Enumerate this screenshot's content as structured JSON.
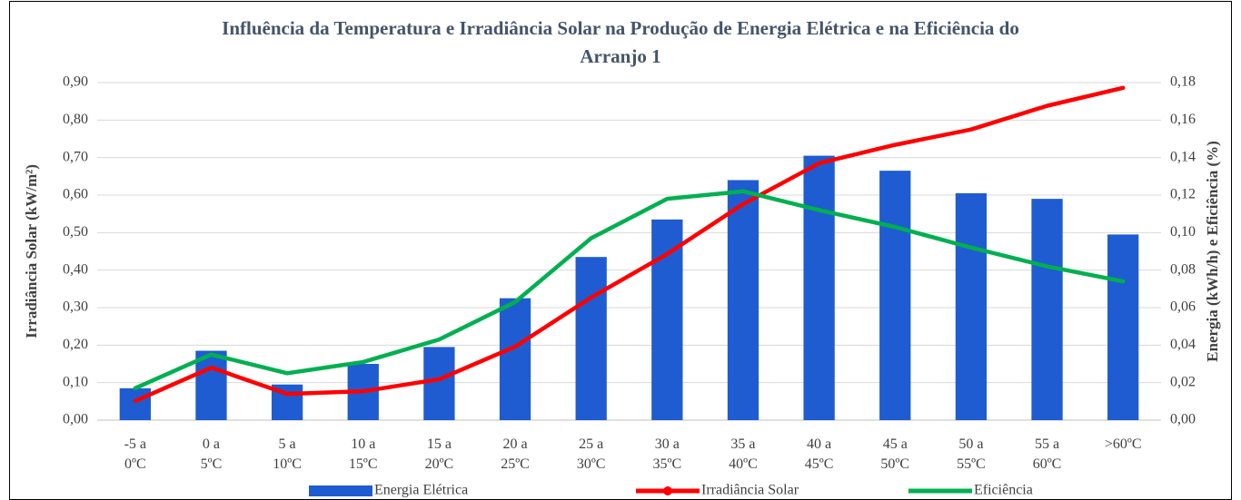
{
  "chart_data": {
    "type": "bar_line",
    "title": "Influência da Temperatura e Irradiância Solar na Produção de Energia Elétrica e na Eficiência do Arranjo 1",
    "ylabel": "Irradiância Solar (kW/m²)",
    "y2label": "Energia (kWh/h) e Eficiência (%)",
    "categories": [
      "-5 a 0ºC",
      "0 a 5ºC",
      "5 a 10ºC",
      "10 a 15ºC",
      "15 a 20ºC",
      "20 a 25ºC",
      "25 a 30ºC",
      "30 a 35ºC",
      "35 a 40ºC",
      "40 a 45ºC",
      "45 a 50ºC",
      "50 a 55ºC",
      "55 a 60ºC",
      ">60ºC"
    ],
    "series": [
      {
        "name": "Energia Elétrica",
        "type": "bar",
        "axis": "y2",
        "color": "#1f5cd1",
        "values": [
          0.017,
          0.037,
          0.019,
          0.03,
          0.039,
          0.065,
          0.087,
          0.107,
          0.128,
          0.141,
          0.133,
          0.121,
          0.118,
          0.099
        ]
      },
      {
        "name": "Irradiância Solar",
        "type": "line",
        "axis": "y",
        "color": "#ff0000",
        "values": [
          0.051,
          0.14,
          0.07,
          0.077,
          0.109,
          0.196,
          0.327,
          0.443,
          0.576,
          0.685,
          0.734,
          0.775,
          0.838,
          0.886
        ]
      },
      {
        "name": "Eficiência",
        "type": "line",
        "axis": "y2",
        "color": "#00b050",
        "values": [
          0.017,
          0.035,
          0.025,
          0.031,
          0.043,
          0.063,
          0.097,
          0.118,
          0.122,
          0.112,
          0.103,
          0.092,
          0.082,
          0.074
        ]
      }
    ],
    "ylim": [
      0,
      0.9
    ],
    "yticks": [
      {
        "value": 0,
        "label": "0,00"
      },
      {
        "value": 0.1,
        "label": "0,10"
      },
      {
        "value": 0.2,
        "label": "0,20"
      },
      {
        "value": 0.3,
        "label": "0,30"
      },
      {
        "value": 0.4,
        "label": "0,40"
      },
      {
        "value": 0.5,
        "label": "0,50"
      },
      {
        "value": 0.6,
        "label": "0,60"
      },
      {
        "value": 0.7,
        "label": "0,70"
      },
      {
        "value": 0.8,
        "label": "0,80"
      },
      {
        "value": 0.9,
        "label": "0,90"
      }
    ],
    "y2lim": [
      0,
      0.18
    ],
    "y2ticks": [
      {
        "value": 0,
        "label": "0,00"
      },
      {
        "value": 0.02,
        "label": "0,02"
      },
      {
        "value": 0.04,
        "label": "0,04"
      },
      {
        "value": 0.06,
        "label": "0,06"
      },
      {
        "value": 0.08,
        "label": "0,08"
      },
      {
        "value": 0.1,
        "label": "0,10"
      },
      {
        "value": 0.12,
        "label": "0,12"
      },
      {
        "value": 0.14,
        "label": "0,14"
      },
      {
        "value": 0.16,
        "label": "0,16"
      },
      {
        "value": 0.18,
        "label": "0,18"
      }
    ],
    "grid": true,
    "legend": "bottom"
  }
}
